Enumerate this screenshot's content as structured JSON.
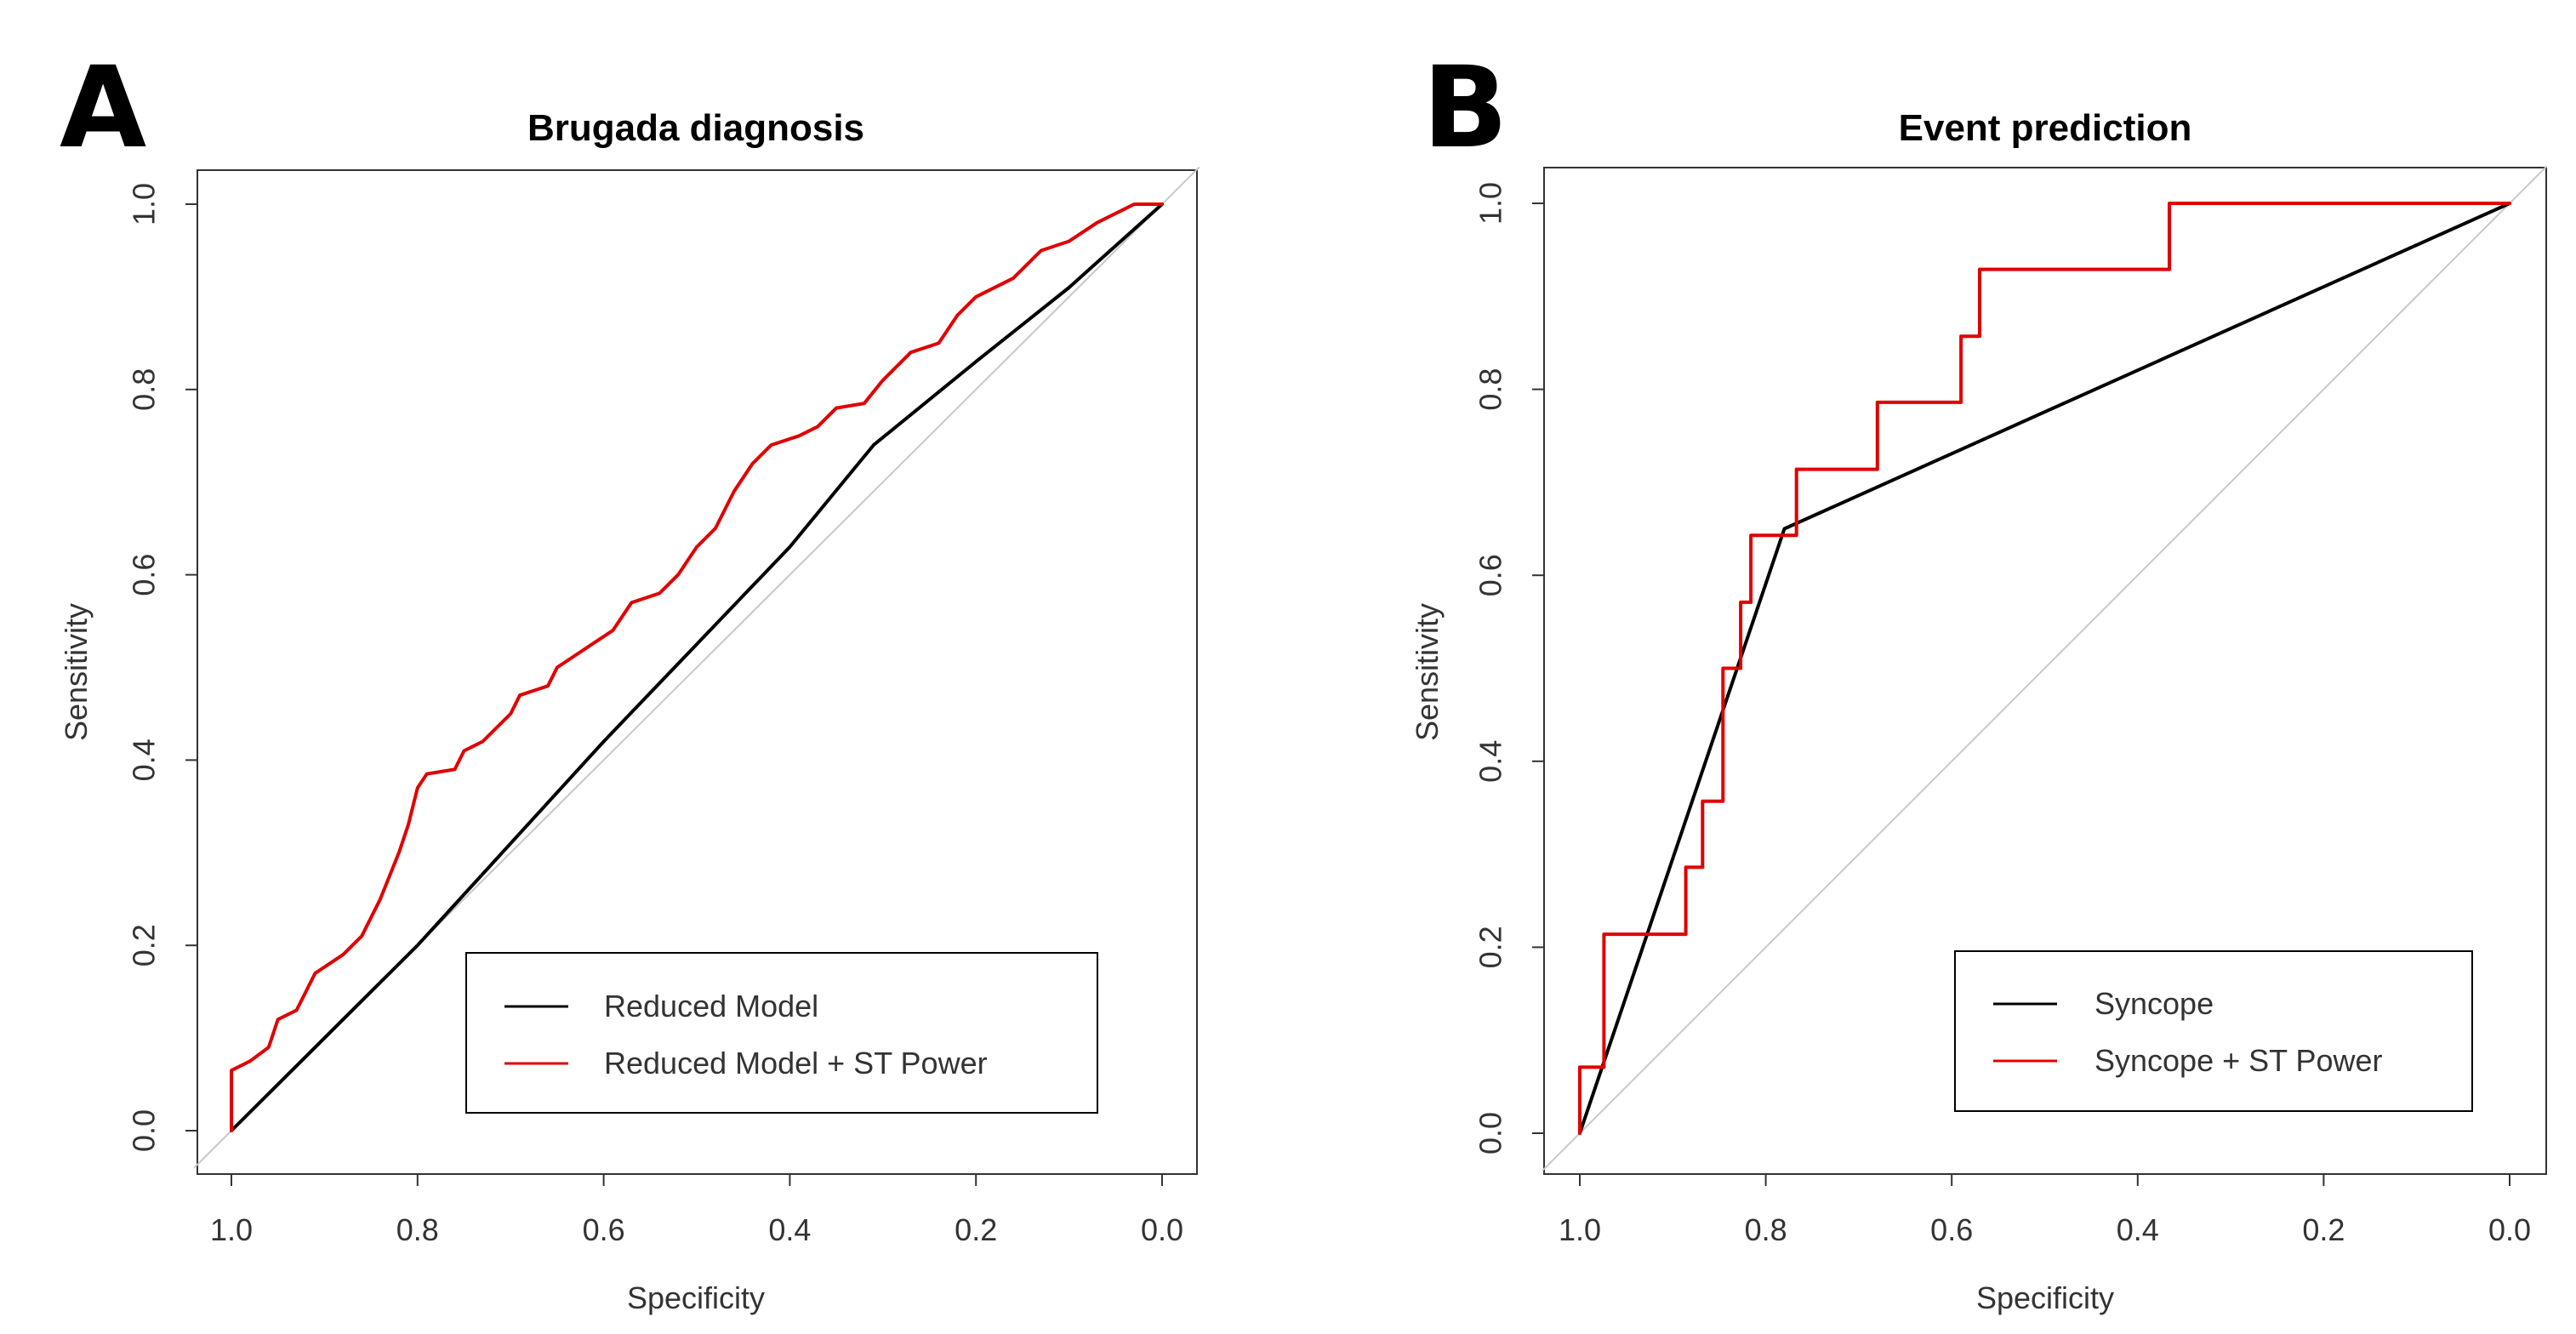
{
  "chart_data": [
    {
      "type": "line",
      "panel": "A",
      "title": "Brugada diagnosis",
      "xlabel": "Specificity",
      "ylabel": "Sensitivity",
      "xlim": [
        1.0,
        0.0
      ],
      "ylim": [
        0.0,
        1.0
      ],
      "x_reversed": true,
      "x_ticks": [
        "1.0",
        "0.8",
        "0.6",
        "0.4",
        "0.2",
        "0.0"
      ],
      "y_ticks": [
        "0.0",
        "0.2",
        "0.4",
        "0.6",
        "0.8",
        "1.0"
      ],
      "legend_position": "bottom-right",
      "grid": false,
      "reference_line": {
        "color": "#c8c8c8",
        "points": [
          [
            1.0,
            0.0
          ],
          [
            0.0,
            1.0
          ]
        ]
      },
      "series": [
        {
          "name": "Reduced Model",
          "color": "#000000",
          "points": [
            [
              1.0,
              0.0
            ],
            [
              0.8,
              0.2
            ],
            [
              0.6,
              0.42
            ],
            [
              0.4,
              0.63
            ],
            [
              0.31,
              0.74
            ],
            [
              0.2,
              0.83
            ],
            [
              0.1,
              0.91
            ],
            [
              0.0,
              1.0
            ]
          ]
        },
        {
          "name": "Reduced Model + ST Power",
          "color": "#e00000",
          "points": [
            [
              1.0,
              0.0
            ],
            [
              1.0,
              0.065
            ],
            [
              0.98,
              0.075
            ],
            [
              0.96,
              0.09
            ],
            [
              0.95,
              0.12
            ],
            [
              0.93,
              0.13
            ],
            [
              0.91,
              0.17
            ],
            [
              0.88,
              0.19
            ],
            [
              0.86,
              0.21
            ],
            [
              0.84,
              0.25
            ],
            [
              0.82,
              0.3
            ],
            [
              0.81,
              0.33
            ],
            [
              0.8,
              0.37
            ],
            [
              0.79,
              0.385
            ],
            [
              0.76,
              0.39
            ],
            [
              0.75,
              0.41
            ],
            [
              0.73,
              0.42
            ],
            [
              0.7,
              0.45
            ],
            [
              0.69,
              0.47
            ],
            [
              0.66,
              0.48
            ],
            [
              0.65,
              0.5
            ],
            [
              0.62,
              0.52
            ],
            [
              0.59,
              0.54
            ],
            [
              0.57,
              0.57
            ],
            [
              0.54,
              0.58
            ],
            [
              0.52,
              0.6
            ],
            [
              0.5,
              0.63
            ],
            [
              0.48,
              0.65
            ],
            [
              0.46,
              0.69
            ],
            [
              0.44,
              0.72
            ],
            [
              0.42,
              0.74
            ],
            [
              0.39,
              0.75
            ],
            [
              0.37,
              0.76
            ],
            [
              0.35,
              0.78
            ],
            [
              0.32,
              0.785
            ],
            [
              0.3,
              0.81
            ],
            [
              0.27,
              0.84
            ],
            [
              0.24,
              0.85
            ],
            [
              0.22,
              0.88
            ],
            [
              0.2,
              0.9
            ],
            [
              0.16,
              0.92
            ],
            [
              0.13,
              0.95
            ],
            [
              0.1,
              0.96
            ],
            [
              0.07,
              0.98
            ],
            [
              0.05,
              0.99
            ],
            [
              0.03,
              1.0
            ],
            [
              0.0,
              1.0
            ]
          ]
        }
      ]
    },
    {
      "type": "line",
      "panel": "B",
      "title": "Event prediction",
      "xlabel": "Specificity",
      "ylabel": "Sensitivity",
      "xlim": [
        1.0,
        0.0
      ],
      "ylim": [
        0.0,
        1.0
      ],
      "x_reversed": true,
      "x_ticks": [
        "1.0",
        "0.8",
        "0.6",
        "0.4",
        "0.2",
        "0.0"
      ],
      "y_ticks": [
        "0.0",
        "0.2",
        "0.4",
        "0.6",
        "0.8",
        "1.0"
      ],
      "legend_position": "bottom-right",
      "grid": false,
      "reference_line": {
        "color": "#c8c8c8",
        "points": [
          [
            1.0,
            0.0
          ],
          [
            0.0,
            1.0
          ]
        ]
      },
      "series": [
        {
          "name": "Syncope",
          "color": "#000000",
          "points": [
            [
              1.0,
              0.0
            ],
            [
              0.78,
              0.65
            ],
            [
              0.0,
              1.0
            ]
          ]
        },
        {
          "name": "Syncope + ST Power",
          "color": "#e00000",
          "points": [
            [
              1.0,
              0.0
            ],
            [
              1.0,
              0.071
            ],
            [
              0.974,
              0.071
            ],
            [
              0.974,
              0.214
            ],
            [
              0.886,
              0.214
            ],
            [
              0.886,
              0.286
            ],
            [
              0.868,
              0.286
            ],
            [
              0.868,
              0.357
            ],
            [
              0.846,
              0.357
            ],
            [
              0.846,
              0.5
            ],
            [
              0.827,
              0.5
            ],
            [
              0.827,
              0.571
            ],
            [
              0.816,
              0.571
            ],
            [
              0.816,
              0.643
            ],
            [
              0.767,
              0.643
            ],
            [
              0.767,
              0.714
            ],
            [
              0.68,
              0.714
            ],
            [
              0.68,
              0.786
            ],
            [
              0.59,
              0.786
            ],
            [
              0.59,
              0.857
            ],
            [
              0.57,
              0.857
            ],
            [
              0.57,
              0.929
            ],
            [
              0.366,
              0.929
            ],
            [
              0.366,
              1.0
            ],
            [
              0.0,
              1.0
            ]
          ]
        }
      ]
    }
  ]
}
